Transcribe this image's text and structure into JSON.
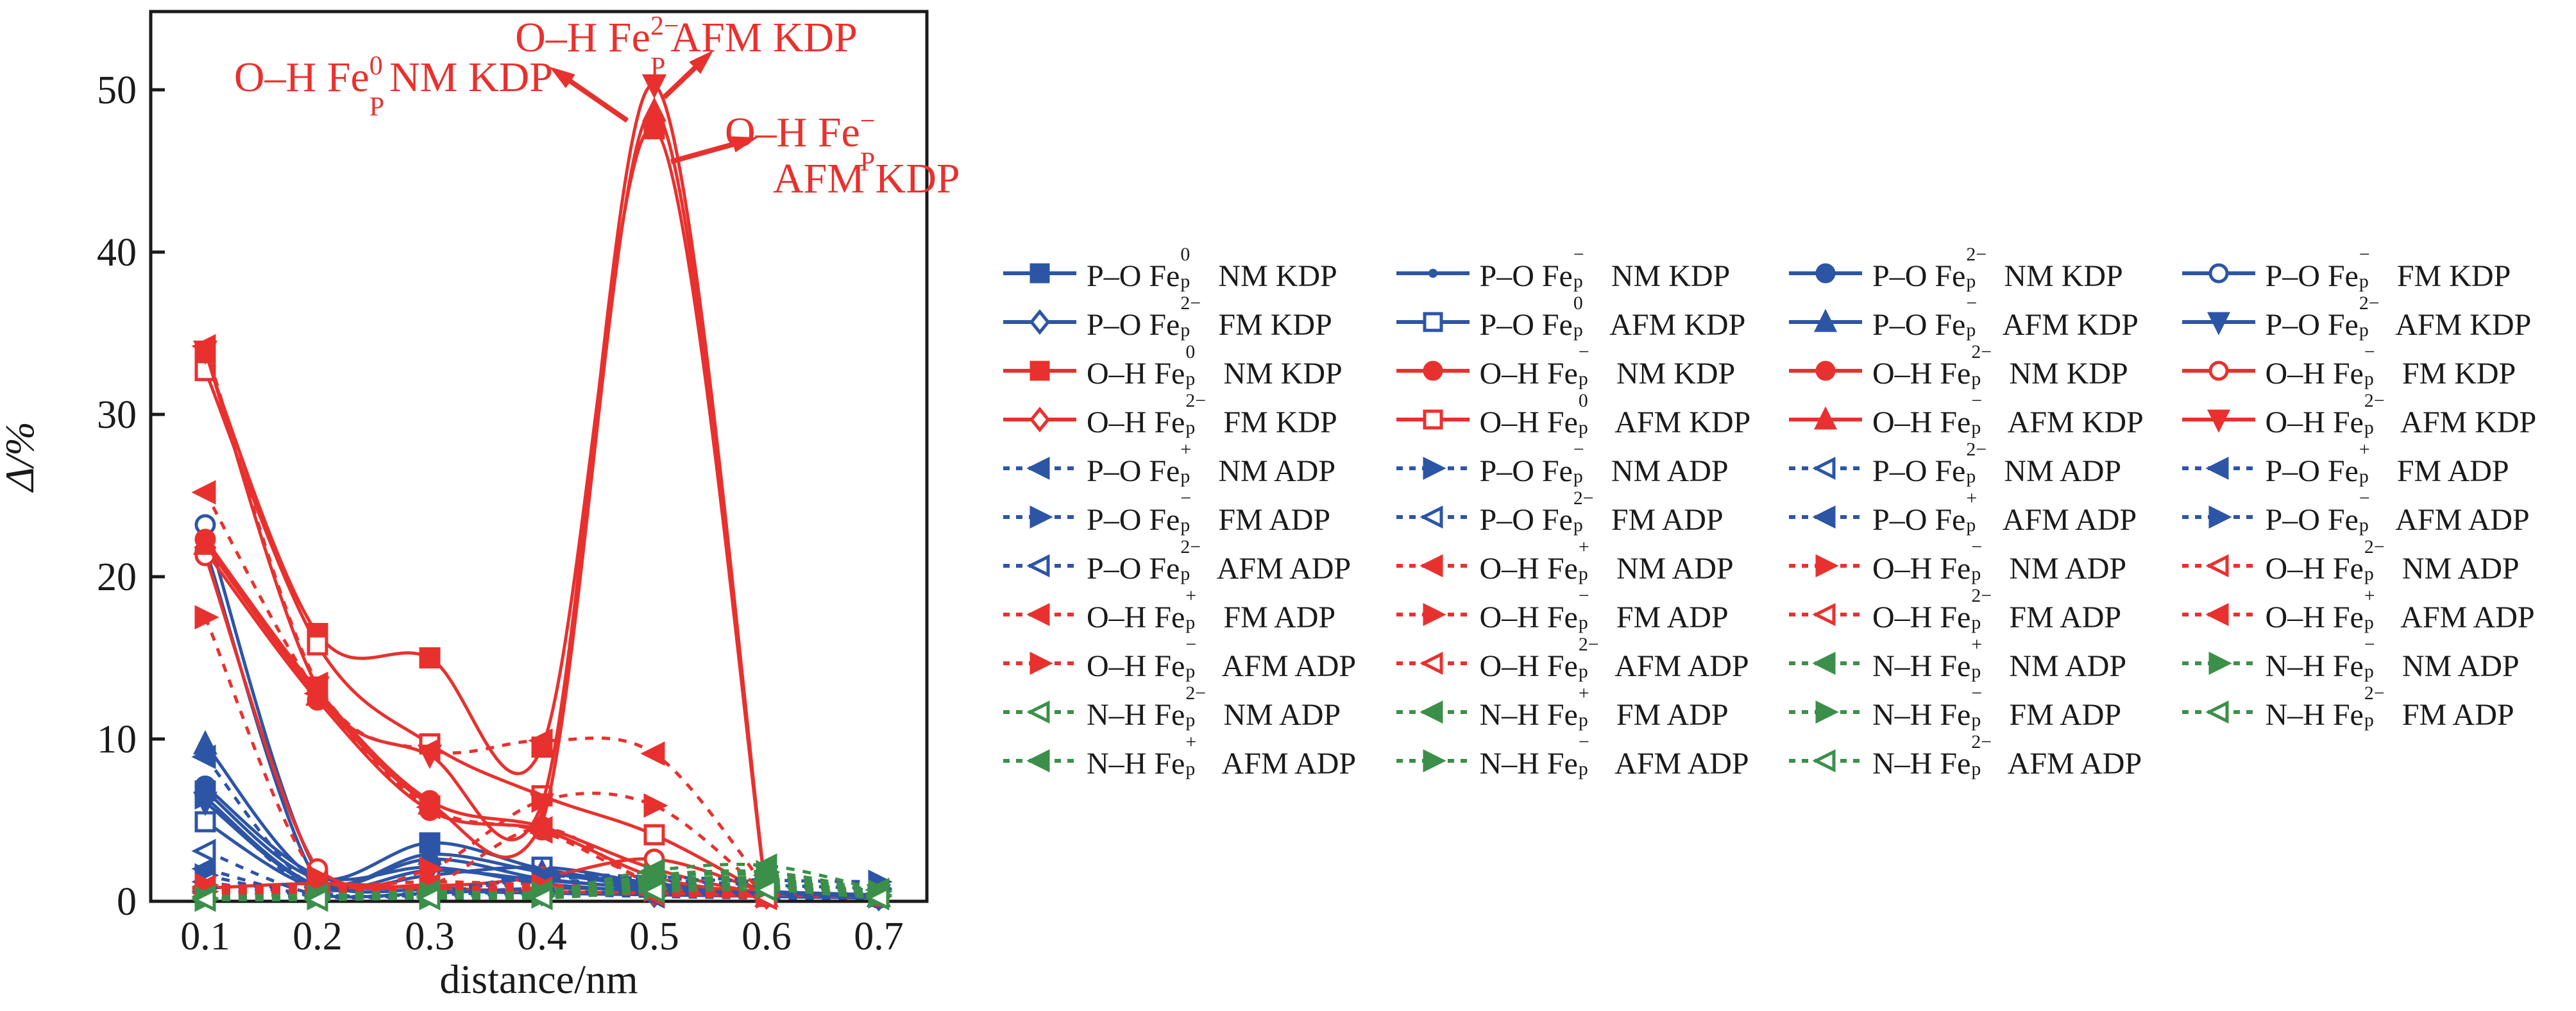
{
  "figure_title": "",
  "colors": {
    "blue": "#2D55A6",
    "red": "#E8312E",
    "green": "#3B8F4A",
    "axis": "#1a1a1a",
    "text": "#1a1a1a"
  },
  "chart_data": {
    "type": "line",
    "title": "",
    "xlabel": "distance/nm",
    "ylabel": "Δ/%",
    "xlim": [
      0.05,
      0.75
    ],
    "ylim": [
      0,
      53
    ],
    "xticks": [
      "0.1",
      "0.2",
      "0.3",
      "0.4",
      "0.5",
      "0.6",
      "0.7"
    ],
    "yticks": [
      "0",
      "10",
      "20",
      "30",
      "40",
      "50"
    ],
    "grid": false,
    "legend_position": "right-outside",
    "x": [
      0.1,
      0.2,
      0.3,
      0.4,
      0.5,
      0.6,
      0.7
    ],
    "series": [
      {
        "bond": "P–O",
        "charge": "0",
        "mag": "NM",
        "crystal": "KDP",
        "color": "blue",
        "marker": "square",
        "fill": "filled",
        "line": "solid",
        "values": [
          6.8,
          1.4,
          3.6,
          2.0,
          1.0,
          0.6,
          0.4
        ]
      },
      {
        "bond": "P–O",
        "charge": "−",
        "mag": "NM",
        "crystal": "KDP",
        "color": "blue",
        "marker": "dot",
        "fill": "filled",
        "line": "solid",
        "values": [
          6.4,
          1.0,
          2.6,
          1.4,
          0.8,
          0.5,
          0.3
        ]
      },
      {
        "bond": "P–O",
        "charge": "2−",
        "mag": "NM",
        "crystal": "KDP",
        "color": "blue",
        "marker": "circle",
        "fill": "filled",
        "line": "solid",
        "values": [
          7.1,
          1.6,
          2.1,
          1.1,
          0.6,
          0.4,
          0.2
        ]
      },
      {
        "bond": "P–O",
        "charge": "−",
        "mag": "FM",
        "crystal": "KDP",
        "color": "blue",
        "marker": "circle",
        "fill": "open",
        "line": "solid",
        "values": [
          23.2,
          1.8,
          0.9,
          0.6,
          0.5,
          0.3,
          0.2
        ]
      },
      {
        "bond": "P–O",
        "charge": "2−",
        "mag": "FM",
        "crystal": "KDP",
        "color": "blue",
        "marker": "diamond",
        "fill": "open",
        "line": "solid",
        "values": [
          21.8,
          1.2,
          0.7,
          0.5,
          0.4,
          0.3,
          0.2
        ]
      },
      {
        "bond": "P–O",
        "charge": "0",
        "mag": "AFM",
        "crystal": "KDP",
        "color": "blue",
        "marker": "square",
        "fill": "open",
        "line": "solid",
        "values": [
          4.9,
          0.8,
          1.6,
          2.1,
          1.1,
          0.6,
          0.3
        ]
      },
      {
        "bond": "P–O",
        "charge": "−",
        "mag": "AFM",
        "crystal": "KDP",
        "color": "blue",
        "marker": "triangle-up",
        "fill": "filled",
        "line": "solid",
        "values": [
          9.7,
          1.3,
          2.9,
          1.8,
          0.9,
          0.6,
          0.3
        ]
      },
      {
        "bond": "P–O",
        "charge": "2−",
        "mag": "AFM",
        "crystal": "KDP",
        "color": "blue",
        "marker": "triangle-down",
        "fill": "filled",
        "line": "solid",
        "values": [
          6.1,
          0.9,
          1.9,
          1.3,
          0.8,
          0.5,
          0.4
        ]
      },
      {
        "bond": "O–H",
        "charge": "0",
        "mag": "NM",
        "crystal": "KDP",
        "color": "red",
        "marker": "square",
        "fill": "filled",
        "line": "solid",
        "values": [
          33.6,
          16.5,
          15.0,
          9.5,
          47.6,
          0.4,
          null
        ]
      },
      {
        "bond": "O–H",
        "charge": "−",
        "mag": "NM",
        "crystal": "KDP",
        "color": "red",
        "marker": "circle",
        "fill": "filled",
        "line": "solid",
        "values": [
          22.3,
          13.0,
          6.2,
          4.6,
          2.0,
          0.5,
          0.3
        ]
      },
      {
        "bond": "O–H",
        "charge": "2−",
        "mag": "NM",
        "crystal": "KDP",
        "color": "red",
        "marker": "circle",
        "fill": "filled",
        "line": "solid",
        "values": [
          21.6,
          12.4,
          5.6,
          4.4,
          1.5,
          0.4,
          null
        ]
      },
      {
        "bond": "O–H",
        "charge": "−",
        "mag": "FM",
        "crystal": "KDP",
        "color": "red",
        "marker": "circle",
        "fill": "open",
        "line": "solid",
        "values": [
          21.3,
          2.0,
          1.0,
          1.5,
          2.6,
          0.5,
          null
        ]
      },
      {
        "bond": "O–H",
        "charge": "2−",
        "mag": "FM",
        "crystal": "KDP",
        "color": "red",
        "marker": "diamond",
        "fill": "open",
        "line": "solid",
        "values": [
          0.8,
          1.1,
          0.8,
          0.6,
          0.5,
          0.3,
          null
        ]
      },
      {
        "bond": "O–H",
        "charge": "0",
        "mag": "AFM",
        "crystal": "KDP",
        "color": "red",
        "marker": "square",
        "fill": "open",
        "line": "solid",
        "values": [
          32.7,
          15.8,
          9.7,
          6.5,
          4.1,
          0.4,
          null
        ]
      },
      {
        "bond": "O–H",
        "charge": "−",
        "mag": "AFM",
        "crystal": "KDP",
        "color": "red",
        "marker": "triangle-up",
        "fill": "filled",
        "line": "solid",
        "values": [
          22.0,
          12.7,
          6.0,
          4.8,
          48.7,
          0.3,
          null
        ]
      },
      {
        "bond": "O–H",
        "charge": "2−",
        "mag": "AFM",
        "crystal": "KDP",
        "color": "red",
        "marker": "triangle-down",
        "fill": "filled",
        "line": "solid",
        "values": [
          33.9,
          13.2,
          9.0,
          6.0,
          50.3,
          0.4,
          null
        ]
      },
      {
        "bond": "P–O",
        "charge": "+",
        "mag": "NM",
        "crystal": "ADP",
        "color": "blue",
        "marker": "triangle-left",
        "fill": "filled",
        "line": "dashed",
        "values": [
          8.9,
          0.6,
          0.5,
          1.5,
          1.4,
          1.2,
          null
        ]
      },
      {
        "bond": "P–O",
        "charge": "−",
        "mag": "NM",
        "crystal": "ADP",
        "color": "blue",
        "marker": "triangle-right",
        "fill": "filled",
        "line": "dashed",
        "values": [
          6.4,
          0.5,
          0.6,
          1.6,
          1.5,
          1.3,
          1.2
        ]
      },
      {
        "bond": "P–O",
        "charge": "2−",
        "mag": "NM",
        "crystal": "ADP",
        "color": "blue",
        "marker": "triangle-left",
        "fill": "open",
        "line": "dashed",
        "values": [
          3.1,
          0.4,
          0.5,
          0.8,
          0.7,
          0.5,
          0.3
        ]
      },
      {
        "bond": "P–O",
        "charge": "+",
        "mag": "FM",
        "crystal": "ADP",
        "color": "blue",
        "marker": "triangle-left",
        "fill": "filled",
        "line": "dashed",
        "values": [
          2.0,
          0.3,
          0.4,
          0.6,
          0.5,
          0.4,
          0.3
        ]
      },
      {
        "bond": "P–O",
        "charge": "−",
        "mag": "FM",
        "crystal": "ADP",
        "color": "blue",
        "marker": "triangle-right",
        "fill": "filled",
        "line": "dashed",
        "values": [
          1.6,
          0.3,
          0.5,
          1.4,
          1.3,
          1.0,
          0.8
        ]
      },
      {
        "bond": "P–O",
        "charge": "2−",
        "mag": "FM",
        "crystal": "ADP",
        "color": "blue",
        "marker": "triangle-left",
        "fill": "open",
        "line": "dashed",
        "values": [
          1.2,
          0.3,
          0.3,
          0.5,
          0.4,
          0.3,
          0.2
        ]
      },
      {
        "bond": "P–O",
        "charge": "+",
        "mag": "AFM",
        "crystal": "ADP",
        "color": "blue",
        "marker": "triangle-left",
        "fill": "filled",
        "line": "dashed",
        "values": [
          0.9,
          0.2,
          0.3,
          0.5,
          0.4,
          0.3,
          0.2
        ]
      },
      {
        "bond": "P–O",
        "charge": "−",
        "mag": "AFM",
        "crystal": "ADP",
        "color": "blue",
        "marker": "triangle-right",
        "fill": "filled",
        "line": "dashed",
        "values": [
          0.8,
          0.2,
          0.4,
          1.2,
          1.1,
          0.9,
          0.7
        ]
      },
      {
        "bond": "P–O",
        "charge": "2−",
        "mag": "AFM",
        "crystal": "ADP",
        "color": "blue",
        "marker": "triangle-left",
        "fill": "open",
        "line": "dashed",
        "values": [
          0.6,
          0.2,
          0.2,
          0.4,
          0.3,
          0.2,
          0.2
        ]
      },
      {
        "bond": "O–H",
        "charge": "+",
        "mag": "NM",
        "crystal": "ADP",
        "color": "red",
        "marker": "triangle-left",
        "fill": "filled",
        "line": "dashed",
        "values": [
          34.2,
          13.4,
          9.3,
          9.9,
          9.1,
          0.8,
          null
        ]
      },
      {
        "bond": "O–H",
        "charge": "−",
        "mag": "NM",
        "crystal": "ADP",
        "color": "red",
        "marker": "triangle-right",
        "fill": "filled",
        "line": "dashed",
        "values": [
          17.5,
          1.5,
          2.0,
          6.2,
          5.9,
          0.4,
          null
        ]
      },
      {
        "bond": "O–H",
        "charge": "2−",
        "mag": "NM",
        "crystal": "ADP",
        "color": "red",
        "marker": "triangle-left",
        "fill": "open",
        "line": "dashed",
        "values": [
          0.9,
          0.8,
          0.7,
          0.8,
          0.6,
          0.3,
          null
        ]
      },
      {
        "bond": "O–H",
        "charge": "+",
        "mag": "FM",
        "crystal": "ADP",
        "color": "red",
        "marker": "triangle-left",
        "fill": "filled",
        "line": "dashed",
        "values": [
          25.2,
          12.8,
          5.8,
          4.3,
          1.2,
          0.4,
          null
        ]
      },
      {
        "bond": "O–H",
        "charge": "−",
        "mag": "FM",
        "crystal": "ADP",
        "color": "red",
        "marker": "triangle-right",
        "fill": "filled",
        "line": "dashed",
        "values": [
          1.0,
          0.9,
          1.2,
          1.0,
          0.8,
          0.4,
          null
        ]
      },
      {
        "bond": "O–H",
        "charge": "2−",
        "mag": "FM",
        "crystal": "ADP",
        "color": "red",
        "marker": "triangle-left",
        "fill": "open",
        "line": "dashed",
        "values": [
          0.7,
          0.6,
          0.6,
          0.7,
          0.5,
          0.3,
          null
        ]
      },
      {
        "bond": "O–H",
        "charge": "+",
        "mag": "AFM",
        "crystal": "ADP",
        "color": "red",
        "marker": "triangle-left",
        "fill": "filled",
        "line": "dashed",
        "values": [
          0.8,
          0.7,
          1.0,
          4.5,
          1.0,
          0.4,
          null
        ]
      },
      {
        "bond": "O–H",
        "charge": "−",
        "mag": "AFM",
        "crystal": "ADP",
        "color": "red",
        "marker": "triangle-right",
        "fill": "filled",
        "line": "dashed",
        "values": [
          0.6,
          0.5,
          0.8,
          0.9,
          0.7,
          0.3,
          null
        ]
      },
      {
        "bond": "O–H",
        "charge": "2−",
        "mag": "AFM",
        "crystal": "ADP",
        "color": "red",
        "marker": "triangle-left",
        "fill": "open",
        "line": "dashed",
        "values": [
          0.5,
          0.4,
          0.5,
          0.6,
          0.4,
          0.2,
          null
        ]
      },
      {
        "bond": "N–H",
        "charge": "+",
        "mag": "NM",
        "crystal": "ADP",
        "color": "green",
        "marker": "triangle-left",
        "fill": "filled",
        "line": "dashed",
        "values": [
          0.3,
          0.4,
          0.6,
          0.6,
          1.9,
          2.2,
          0.7
        ]
      },
      {
        "bond": "N–H",
        "charge": "−",
        "mag": "NM",
        "crystal": "ADP",
        "color": "green",
        "marker": "triangle-right",
        "fill": "filled",
        "line": "dashed",
        "values": [
          0.2,
          0.3,
          0.5,
          0.5,
          1.6,
          1.8,
          0.6
        ]
      },
      {
        "bond": "N–H",
        "charge": "2−",
        "mag": "NM",
        "crystal": "ADP",
        "color": "green",
        "marker": "triangle-left",
        "fill": "open",
        "line": "dashed",
        "values": [
          0.2,
          0.3,
          0.4,
          0.4,
          1.2,
          1.3,
          0.5
        ]
      },
      {
        "bond": "N–H",
        "charge": "+",
        "mag": "FM",
        "crystal": "ADP",
        "color": "green",
        "marker": "triangle-left",
        "fill": "filled",
        "line": "dashed",
        "values": [
          0.2,
          0.3,
          0.4,
          0.5,
          1.5,
          1.6,
          0.5
        ]
      },
      {
        "bond": "N–H",
        "charge": "−",
        "mag": "FM",
        "crystal": "ADP",
        "color": "green",
        "marker": "triangle-right",
        "fill": "filled",
        "line": "dashed",
        "values": [
          0.2,
          0.2,
          0.3,
          0.4,
          1.3,
          1.4,
          0.4
        ]
      },
      {
        "bond": "N–H",
        "charge": "2−",
        "mag": "FM",
        "crystal": "ADP",
        "color": "green",
        "marker": "triangle-left",
        "fill": "open",
        "line": "dashed",
        "values": [
          0.1,
          0.2,
          0.3,
          0.3,
          0.9,
          1.0,
          0.3
        ]
      },
      {
        "bond": "N–H",
        "charge": "+",
        "mag": "AFM",
        "crystal": "ADP",
        "color": "green",
        "marker": "triangle-left",
        "fill": "filled",
        "line": "dashed",
        "values": [
          0.2,
          0.2,
          0.3,
          0.4,
          1.1,
          1.2,
          0.4
        ]
      },
      {
        "bond": "N–H",
        "charge": "−",
        "mag": "AFM",
        "crystal": "ADP",
        "color": "green",
        "marker": "triangle-right",
        "fill": "filled",
        "line": "dashed",
        "values": [
          0.1,
          0.2,
          0.2,
          0.3,
          0.8,
          0.9,
          0.3
        ]
      },
      {
        "bond": "N–H",
        "charge": "2−",
        "mag": "AFM",
        "crystal": "ADP",
        "color": "green",
        "marker": "triangle-left",
        "fill": "open",
        "line": "dashed",
        "values": [
          0.1,
          0.1,
          0.2,
          0.2,
          0.6,
          0.7,
          0.2
        ]
      }
    ],
    "annotations": [
      {
        "prefix": "O–H Fe",
        "sup": "2−",
        "sub": "P",
        "suffix": "AFM KDP",
        "line2": ""
      },
      {
        "prefix": "O–H Fe",
        "sup": "0",
        "sub": "P",
        "suffix": "NM KDP",
        "line2": ""
      },
      {
        "prefix": "O–H Fe",
        "sup": "−",
        "sub": "P",
        "suffix": "",
        "line2": "AFM KDP"
      }
    ]
  },
  "legend": {
    "columns": 4,
    "rows": 11
  }
}
